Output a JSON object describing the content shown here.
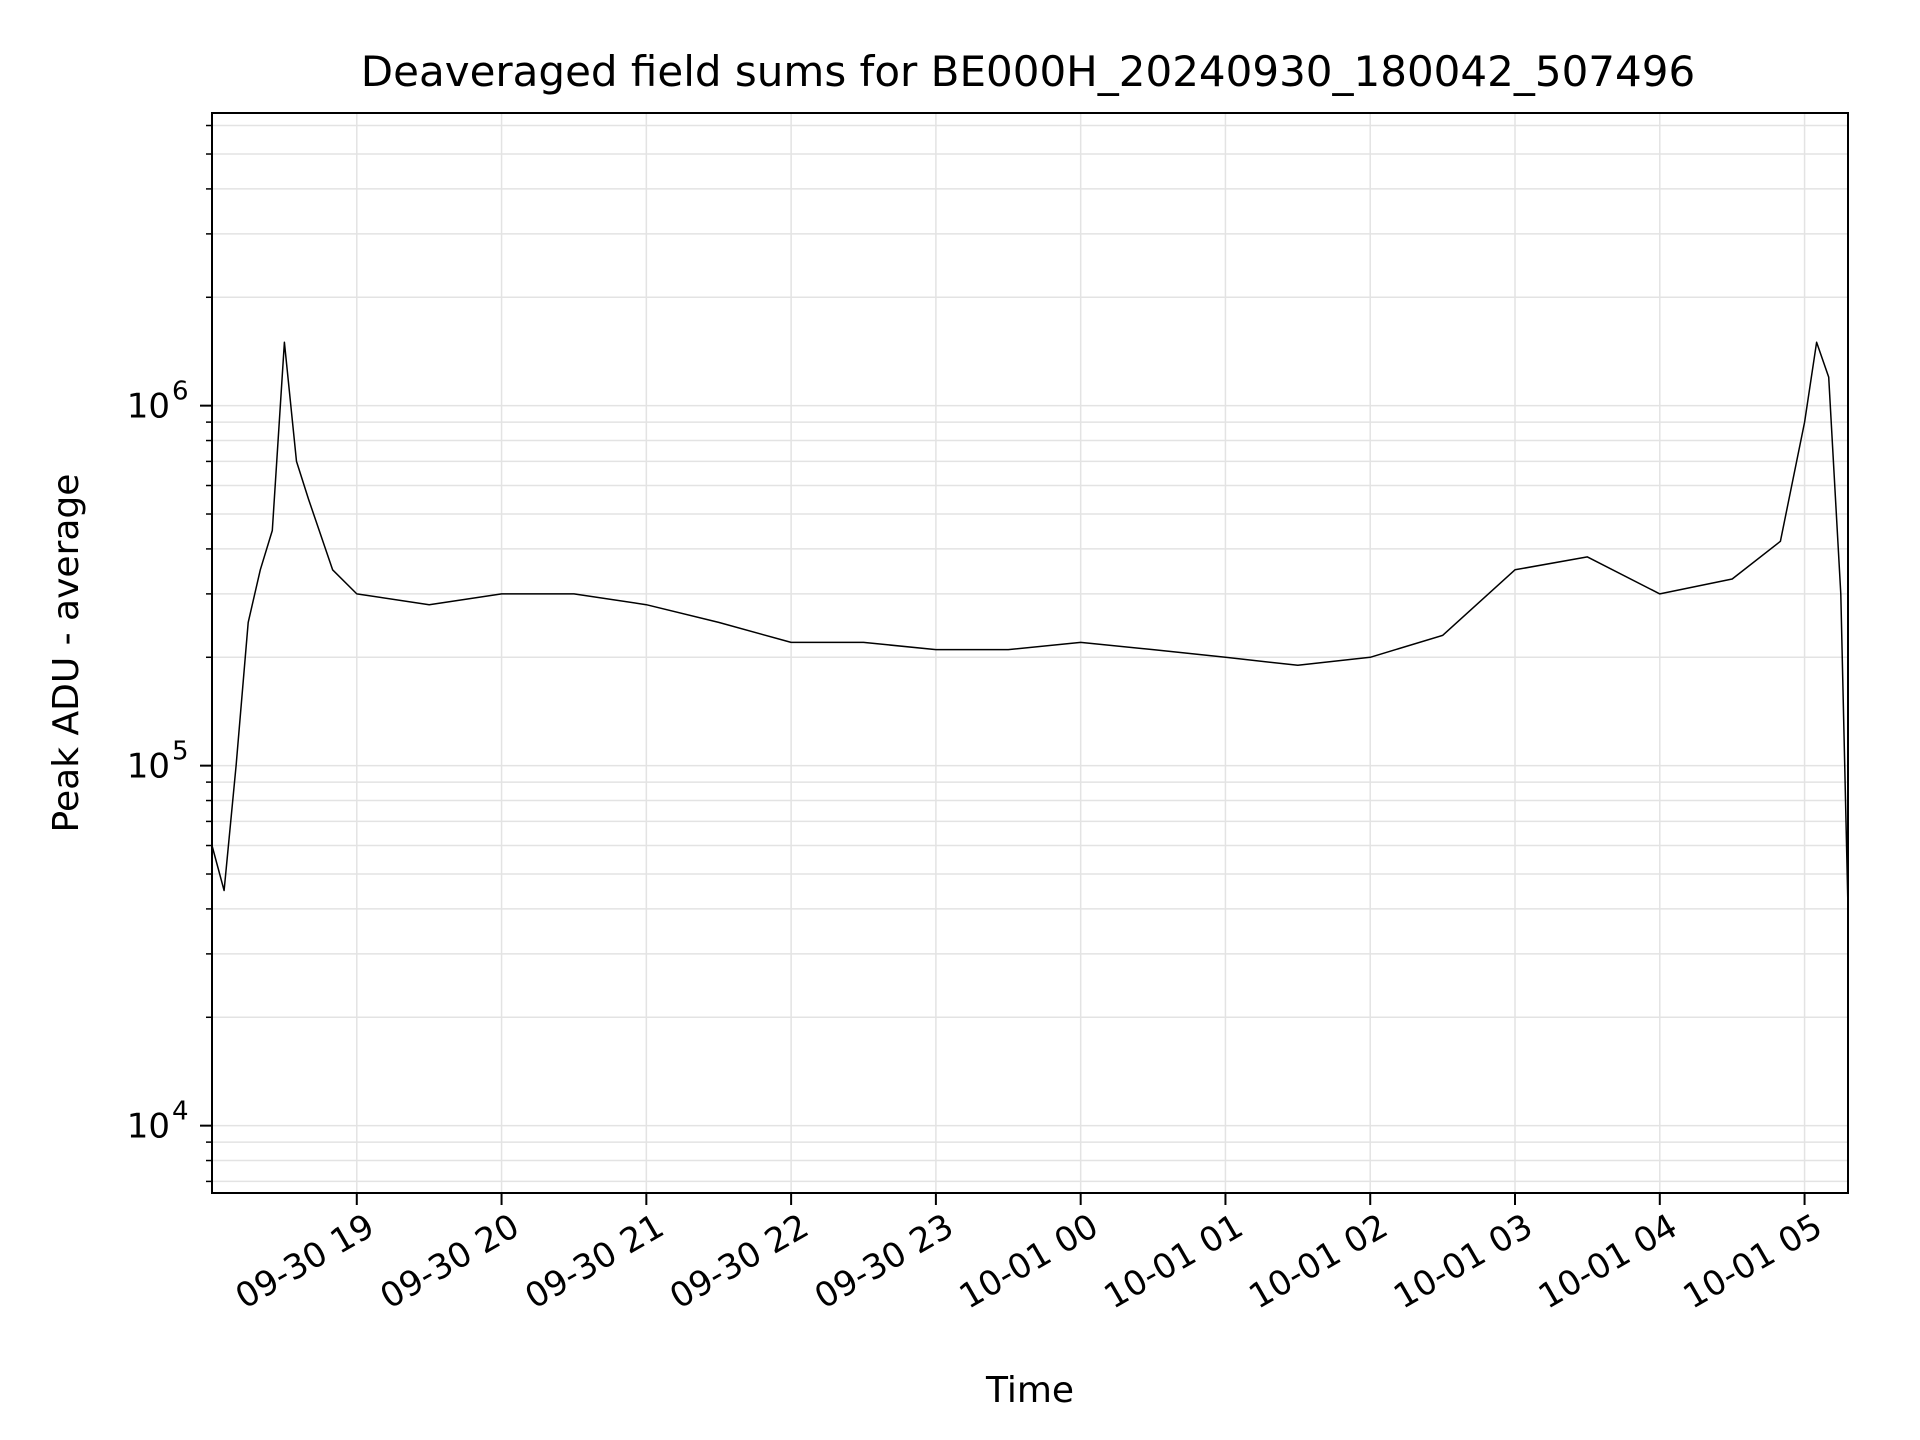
{
  "chart_data": {
    "type": "line",
    "title": "Deaveraged field sums for BE000H_20240930_180042_507496",
    "xlabel": "Time",
    "ylabel": "Peak ADU - average",
    "yscale": "log",
    "ylim": [
      6500,
      6500000
    ],
    "xlim": [
      "2024-09-30 18:00",
      "2024-10-01 05:18"
    ],
    "grid": true,
    "line_color": "#000000",
    "x_ticks": [
      {
        "time": "2024-09-30 19:00",
        "label": "09-30 19"
      },
      {
        "time": "2024-09-30 20:00",
        "label": "09-30 20"
      },
      {
        "time": "2024-09-30 21:00",
        "label": "09-30 21"
      },
      {
        "time": "2024-09-30 22:00",
        "label": "09-30 22"
      },
      {
        "time": "2024-09-30 23:00",
        "label": "09-30 23"
      },
      {
        "time": "2024-10-01 00:00",
        "label": "10-01 00"
      },
      {
        "time": "2024-10-01 01:00",
        "label": "10-01 01"
      },
      {
        "time": "2024-10-01 02:00",
        "label": "10-01 02"
      },
      {
        "time": "2024-10-01 03:00",
        "label": "10-01 03"
      },
      {
        "time": "2024-10-01 04:00",
        "label": "10-01 04"
      },
      {
        "time": "2024-10-01 05:00",
        "label": "10-01 05"
      }
    ],
    "y_ticks": [
      {
        "value": 10000,
        "base": "10",
        "exp": "4"
      },
      {
        "value": 100000,
        "base": "10",
        "exp": "5"
      },
      {
        "value": 1000000,
        "base": "10",
        "exp": "6"
      }
    ],
    "series": [
      {
        "x": [
          "2024-09-30 18:00",
          "2024-09-30 18:05",
          "2024-09-30 18:10",
          "2024-09-30 18:15",
          "2024-09-30 18:20",
          "2024-09-30 18:25",
          "2024-09-30 18:30",
          "2024-09-30 18:35",
          "2024-09-30 18:40",
          "2024-09-30 18:50",
          "2024-09-30 19:00",
          "2024-09-30 19:30",
          "2024-09-30 20:00",
          "2024-09-30 20:30",
          "2024-09-30 21:00",
          "2024-09-30 21:30",
          "2024-09-30 22:00",
          "2024-09-30 22:30",
          "2024-09-30 23:00",
          "2024-09-30 23:30",
          "2024-10-01 00:00",
          "2024-10-01 00:30",
          "2024-10-01 01:00",
          "2024-10-01 01:30",
          "2024-10-01 02:00",
          "2024-10-01 02:30",
          "2024-10-01 03:00",
          "2024-10-01 03:30",
          "2024-10-01 04:00",
          "2024-10-01 04:30",
          "2024-10-01 04:50",
          "2024-10-01 05:00",
          "2024-10-01 05:05",
          "2024-10-01 05:10",
          "2024-10-01 05:15",
          "2024-10-01 05:18"
        ],
        "y": [
          60000,
          45000,
          100000,
          250000,
          350000,
          450000,
          1500000,
          700000,
          550000,
          350000,
          300000,
          280000,
          300000,
          300000,
          280000,
          250000,
          220000,
          220000,
          210000,
          210000,
          220000,
          210000,
          200000,
          190000,
          200000,
          230000,
          350000,
          380000,
          300000,
          330000,
          420000,
          900000,
          1500000,
          1200000,
          300000,
          40000
        ]
      }
    ]
  }
}
